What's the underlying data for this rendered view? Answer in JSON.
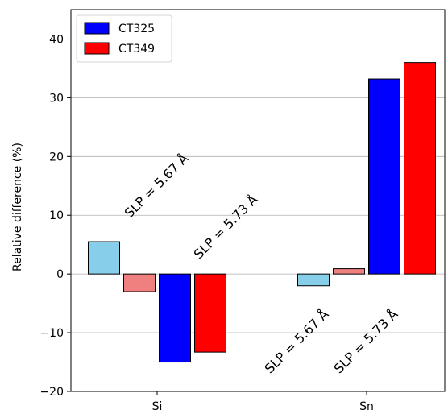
{
  "chart_data": {
    "type": "bar",
    "categories": [
      "Si",
      "Sn"
    ],
    "ylabel": "Relative difference (%)",
    "ylim": [
      -20,
      45
    ],
    "yticks": [
      -20,
      -10,
      0,
      10,
      20,
      30,
      40
    ],
    "grid": "y",
    "legend_position": "top-left",
    "series": [
      {
        "label": "SLP = 5.67 Å, CT325",
        "values": [
          5.5,
          -2.0
        ],
        "color": "#87ceeb",
        "in_legend": false
      },
      {
        "label": "SLP = 5.73 Å, CT349",
        "values": [
          -3.0,
          0.9
        ],
        "color": "#f08080",
        "in_legend": false
      },
      {
        "name": "CT325",
        "values": [
          -15.0,
          33.2
        ],
        "color": "#0000ff",
        "in_legend": true
      },
      {
        "name": "CT349",
        "values": [
          -13.3,
          36.0
        ],
        "color": "#ff0000",
        "in_legend": true
      }
    ],
    "annotations": [
      {
        "text": "SLP = 5.67 Å",
        "category": "Si",
        "y": 9,
        "rotation": -45
      },
      {
        "text": "SLP = 5.73 Å",
        "category": "Si",
        "y": 2,
        "rotation": -45
      },
      {
        "text": "SLP = 5.67 Å",
        "category": "Sn",
        "y": -17.5,
        "rotation": -45
      },
      {
        "text": "SLP = 5.73 Å",
        "category": "Sn",
        "y": -17.5,
        "rotation": -45
      }
    ]
  }
}
